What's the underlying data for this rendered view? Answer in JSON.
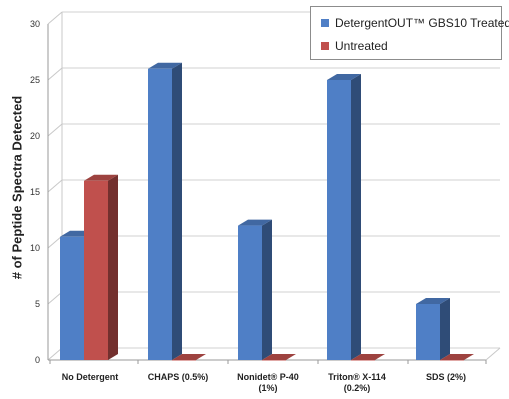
{
  "chart_data": {
    "type": "bar",
    "title": "",
    "xlabel": "",
    "ylabel": "# of Peptide Spectra Detected",
    "ylim": [
      0,
      30
    ],
    "yticks": [
      "0",
      "5",
      "10",
      "15",
      "20",
      "25",
      "30"
    ],
    "categories": [
      [
        "No Detergent"
      ],
      [
        "CHAPS (0.5%)"
      ],
      [
        "Nonidet® P-40",
        "(1%)"
      ],
      [
        "Triton® X-114",
        "(0.2%)"
      ],
      [
        "SDS (2%)"
      ]
    ],
    "series": [
      {
        "name": "DetergentOUT™ GBS10 Treated",
        "color": "#4f7fc6",
        "values": [
          11,
          26,
          12,
          25,
          5
        ]
      },
      {
        "name": "Untreated",
        "color": "#c0504d",
        "values": [
          16,
          0,
          0,
          0,
          0
        ]
      }
    ],
    "legend_position": "top-right",
    "grid": true,
    "style": "3d"
  }
}
